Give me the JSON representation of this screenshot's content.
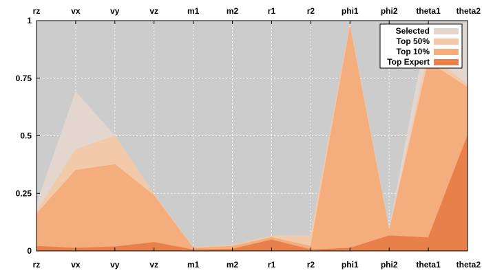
{
  "chart_data": {
    "type": "area",
    "title": "",
    "xlabel": "",
    "ylabel": "",
    "categories": [
      "rz",
      "vx",
      "vy",
      "vz",
      "m1",
      "m2",
      "r1",
      "r2",
      "phi1",
      "phi2",
      "theta1",
      "theta2"
    ],
    "ylim": [
      0,
      1
    ],
    "y_ticks": [
      "0",
      "0.25",
      "0.5",
      "0.75",
      "1"
    ],
    "y_tick_values": [
      0,
      0.25,
      0.5,
      0.75,
      1
    ],
    "grid": true,
    "legend_position": "top-right",
    "series": [
      {
        "name": "Selected",
        "color": "#e2d6cf",
        "values": [
          0.2,
          0.69,
          0.5,
          0.23,
          0.015,
          0.025,
          0.065,
          0.065,
          0.98,
          0.09,
          0.99,
          0.99
        ]
      },
      {
        "name": "Top 50%",
        "color": "#f2c9a9",
        "values": [
          0.17,
          0.44,
          0.5,
          0.245,
          0.015,
          0.025,
          0.065,
          0.065,
          0.98,
          0.09,
          0.86,
          0.72
        ]
      },
      {
        "name": "Top 10%",
        "color": "#f4ad7c",
        "values": [
          0.16,
          0.35,
          0.375,
          0.24,
          0.012,
          0.02,
          0.058,
          0.02,
          0.97,
          0.085,
          0.82,
          0.71
        ]
      },
      {
        "name": "Top Expert",
        "color": "#e8804c",
        "values": [
          0.02,
          0.012,
          0.018,
          0.037,
          0.005,
          0.008,
          0.048,
          0.005,
          0.012,
          0.066,
          0.057,
          0.5
        ]
      }
    ]
  },
  "style": {
    "plot_background": "#cccccc",
    "grid_color": "#ffffff",
    "axis_color": "#000000"
  }
}
